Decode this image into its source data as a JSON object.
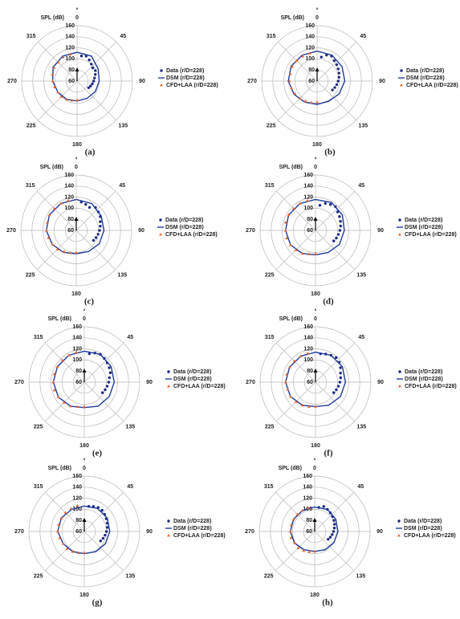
{
  "chart_data": [
    {
      "type": "polar",
      "label": "(a)",
      "raxis_label": "SPL (dB)",
      "angle_unit": "°",
      "rlim": [
        60,
        160
      ],
      "rticks": [
        60,
        80,
        100,
        120,
        140,
        160
      ],
      "angle_ticks": [
        0,
        45,
        90,
        135,
        180,
        225,
        270,
        315
      ],
      "grid": true,
      "series": [
        {
          "name": "Data (r/D=228)",
          "style": "circle",
          "color": "#1c2a80",
          "theta": [
            10,
            20,
            30,
            40,
            50,
            60,
            70,
            80,
            90,
            100,
            110,
            120
          ],
          "values": [
            106,
            108,
            104,
            100,
            97,
            98,
            95,
            92,
            90,
            88,
            86,
            84
          ]
        },
        {
          "name": "DSM (r/D=228)",
          "style": "line",
          "color": "#1f3b9c",
          "theta": [
            0,
            30,
            60,
            90,
            120,
            150,
            180,
            210,
            240,
            270,
            300,
            330,
            360
          ],
          "values": [
            112,
            112,
            104,
            100,
            98,
            96,
            96,
            98,
            100,
            104,
            110,
            112,
            112
          ]
        },
        {
          "name": "CFD+LAA (r/D=228)",
          "style": "triangle",
          "color": "#e8632a",
          "theta": [
            180,
            195,
            210,
            225,
            240,
            255,
            270,
            285,
            300,
            315,
            330,
            345
          ],
          "values": [
            94,
            96,
            98,
            100,
            100,
            102,
            104,
            106,
            108,
            108,
            110,
            110
          ]
        }
      ]
    },
    {
      "type": "polar",
      "label": "(b)",
      "raxis_label": "SPL (dB)",
      "angle_unit": "°",
      "rlim": [
        60,
        160
      ],
      "rticks": [
        60,
        80,
        100,
        120,
        140,
        160
      ],
      "angle_ticks": [
        0,
        45,
        90,
        135,
        180,
        225,
        270,
        315
      ],
      "grid": true,
      "series": [
        {
          "name": "Data (r/D=228)",
          "style": "circle",
          "color": "#1c2a80",
          "theta": [
            10,
            20,
            30,
            40,
            50,
            60,
            70,
            80,
            90,
            100,
            110,
            120
          ],
          "values": [
            104,
            110,
            112,
            108,
            106,
            104,
            102,
            100,
            98,
            96,
            94,
            92
          ]
        },
        {
          "name": "DSM (r/D=228)",
          "style": "line",
          "color": "#1f3b9c",
          "theta": [
            0,
            30,
            60,
            90,
            120,
            150,
            180,
            210,
            240,
            270,
            300,
            330,
            360
          ],
          "values": [
            114,
            114,
            112,
            110,
            106,
            102,
            102,
            104,
            108,
            112,
            114,
            114,
            114
          ]
        },
        {
          "name": "CFD+LAA (r/D=228)",
          "style": "triangle",
          "color": "#e8632a",
          "theta": [
            180,
            195,
            210,
            225,
            240,
            255,
            270,
            285,
            300,
            315,
            330,
            345
          ],
          "values": [
            98,
            100,
            102,
            104,
            106,
            108,
            110,
            110,
            112,
            112,
            112,
            112
          ]
        }
      ]
    },
    {
      "type": "polar",
      "label": "(c)",
      "raxis_label": "SPL (dB)",
      "angle_unit": "°",
      "rlim": [
        60,
        160
      ],
      "rticks": [
        60,
        80,
        100,
        120,
        140,
        160
      ],
      "angle_ticks": [
        0,
        45,
        90,
        135,
        180,
        225,
        270,
        315
      ],
      "grid": true,
      "series": [
        {
          "name": "Data (r/D=228)",
          "style": "circle",
          "color": "#1c2a80",
          "theta": [
            10,
            20,
            30,
            40,
            50,
            60,
            70,
            80,
            90,
            100,
            110,
            120
          ],
          "values": [
            112,
            110,
            108,
            114,
            112,
            110,
            106,
            104,
            102,
            100,
            98,
            96
          ]
        },
        {
          "name": "DSM (r/D=228)",
          "style": "line",
          "color": "#1f3b9c",
          "theta": [
            0,
            30,
            60,
            90,
            120,
            150,
            180,
            210,
            240,
            270,
            300,
            330,
            360
          ],
          "values": [
            116,
            116,
            112,
            110,
            108,
            104,
            102,
            106,
            110,
            114,
            116,
            116,
            116
          ]
        },
        {
          "name": "CFD+LAA (r/D=228)",
          "style": "triangle",
          "color": "#e8632a",
          "theta": [
            180,
            195,
            210,
            225,
            240,
            255,
            270,
            285,
            300,
            315,
            330,
            345
          ],
          "values": [
            100,
            102,
            104,
            108,
            110,
            112,
            114,
            114,
            116,
            116,
            116,
            116
          ]
        }
      ]
    },
    {
      "type": "polar",
      "label": "(d)",
      "raxis_label": "SPL (dB)",
      "angle_unit": "°",
      "rlim": [
        60,
        160
      ],
      "rticks": [
        60,
        80,
        100,
        120,
        140,
        160
      ],
      "angle_ticks": [
        0,
        45,
        90,
        135,
        180,
        225,
        270,
        315
      ],
      "grid": true,
      "series": [
        {
          "name": "Data (r/D=228)",
          "style": "circle",
          "color": "#1c2a80",
          "theta": [
            10,
            20,
            30,
            40,
            50,
            60,
            70,
            80,
            90,
            100,
            110,
            120
          ],
          "values": [
            106,
            112,
            114,
            116,
            112,
            110,
            108,
            106,
            104,
            102,
            100,
            98
          ]
        },
        {
          "name": "DSM (r/D=228)",
          "style": "line",
          "color": "#1f3b9c",
          "theta": [
            0,
            30,
            60,
            90,
            120,
            150,
            180,
            210,
            240,
            270,
            300,
            330,
            360
          ],
          "values": [
            116,
            118,
            116,
            112,
            110,
            106,
            104,
            108,
            112,
            114,
            116,
            116,
            116
          ]
        },
        {
          "name": "CFD+LAA (r/D=228)",
          "style": "triangle",
          "color": "#e8632a",
          "theta": [
            180,
            195,
            210,
            225,
            240,
            255,
            270,
            285,
            300,
            315,
            330,
            345
          ],
          "values": [
            102,
            104,
            108,
            110,
            112,
            114,
            114,
            116,
            116,
            116,
            116,
            116
          ]
        }
      ]
    },
    {
      "type": "polar",
      "label": "(e)",
      "raxis_label": "SPL (dB)",
      "angle_unit": "°",
      "rlim": [
        60,
        160
      ],
      "rticks": [
        60,
        80,
        100,
        120,
        140,
        160
      ],
      "angle_ticks": [
        0,
        45,
        90,
        135,
        180,
        225,
        270,
        315
      ],
      "grid": true,
      "series": [
        {
          "name": "Data (r/D=228)",
          "style": "circle",
          "color": "#1c2a80",
          "theta": [
            10,
            20,
            30,
            40,
            50,
            60,
            70,
            80,
            90,
            100,
            110,
            120
          ],
          "values": [
            112,
            116,
            118,
            116,
            114,
            112,
            110,
            106,
            104,
            102,
            100,
            98
          ]
        },
        {
          "name": "DSM (r/D=228)",
          "style": "line",
          "color": "#1f3b9c",
          "theta": [
            0,
            30,
            60,
            90,
            120,
            150,
            180,
            210,
            240,
            270,
            300,
            330,
            360
          ],
          "values": [
            116,
            118,
            116,
            114,
            112,
            110,
            106,
            110,
            114,
            116,
            116,
            116,
            116
          ]
        },
        {
          "name": "CFD+LAA (r/D=228)",
          "style": "triangle",
          "color": "#e8632a",
          "theta": [
            180,
            195,
            210,
            225,
            240,
            255,
            270,
            285,
            300,
            315,
            330,
            345
          ],
          "values": [
            104,
            106,
            110,
            112,
            114,
            116,
            116,
            116,
            116,
            116,
            116,
            116
          ]
        }
      ]
    },
    {
      "type": "polar",
      "label": "(f)",
      "raxis_label": "SPL (dB)",
      "angle_unit": "°",
      "rlim": [
        60,
        160
      ],
      "rticks": [
        60,
        80,
        100,
        120,
        140,
        160
      ],
      "angle_ticks": [
        0,
        45,
        90,
        135,
        180,
        225,
        270,
        315
      ],
      "grid": true,
      "series": [
        {
          "name": "Data (r/D=228)",
          "style": "circle",
          "color": "#1c2a80",
          "theta": [
            10,
            20,
            30,
            40,
            50,
            60,
            70,
            80,
            90,
            100,
            110,
            120
          ],
          "values": [
            112,
            114,
            116,
            118,
            116,
            112,
            108,
            106,
            104,
            102,
            100,
            98
          ]
        },
        {
          "name": "DSM (r/D=228)",
          "style": "line",
          "color": "#1f3b9c",
          "theta": [
            0,
            30,
            60,
            90,
            120,
            150,
            180,
            210,
            240,
            270,
            300,
            330,
            360
          ],
          "values": [
            114,
            116,
            116,
            114,
            112,
            108,
            104,
            108,
            112,
            114,
            114,
            114,
            114
          ]
        },
        {
          "name": "CFD+LAA (r/D=228)",
          "style": "triangle",
          "color": "#e8632a",
          "theta": [
            180,
            195,
            210,
            225,
            240,
            255,
            270,
            285,
            300,
            315,
            330,
            345
          ],
          "values": [
            104,
            106,
            108,
            110,
            112,
            112,
            114,
            114,
            114,
            114,
            114,
            114
          ]
        }
      ]
    },
    {
      "type": "polar",
      "label": "(g)",
      "raxis_label": "SPL (dB)",
      "angle_unit": "°",
      "rlim": [
        60,
        160
      ],
      "rticks": [
        60,
        80,
        100,
        120,
        140,
        160
      ],
      "angle_ticks": [
        0,
        45,
        90,
        135,
        180,
        225,
        270,
        315
      ],
      "grid": true,
      "series": [
        {
          "name": "Data (r/D=228)",
          "style": "circle",
          "color": "#1c2a80",
          "theta": [
            10,
            20,
            30,
            40,
            50,
            60,
            70,
            80,
            90,
            100,
            110,
            120
          ],
          "values": [
            106,
            108,
            110,
            110,
            108,
            106,
            104,
            102,
            100,
            98,
            96,
            94
          ]
        },
        {
          "name": "DSM (r/D=228)",
          "style": "line",
          "color": "#1f3b9c",
          "theta": [
            0,
            30,
            60,
            90,
            120,
            150,
            180,
            210,
            240,
            270,
            300,
            330,
            360
          ],
          "values": [
            106,
            108,
            108,
            106,
            104,
            102,
            100,
            102,
            104,
            108,
            108,
            106,
            106
          ]
        },
        {
          "name": "CFD+LAA (r/D=228)",
          "style": "triangle",
          "color": "#e8632a",
          "theta": [
            180,
            195,
            210,
            225,
            240,
            255,
            270,
            285,
            300,
            315,
            330,
            345
          ],
          "values": [
            98,
            100,
            102,
            104,
            104,
            106,
            108,
            108,
            108,
            108,
            108,
            108
          ]
        }
      ]
    },
    {
      "type": "polar",
      "label": "(h)",
      "raxis_label": "SPL (dB)",
      "angle_unit": "°",
      "rlim": [
        60,
        160
      ],
      "rticks": [
        60,
        80,
        100,
        120,
        140,
        160
      ],
      "angle_ticks": [
        0,
        45,
        90,
        135,
        180,
        225,
        270,
        315
      ],
      "grid": true,
      "series": [
        {
          "name": "Data (r/D=228)",
          "style": "circle",
          "color": "#1c2a80",
          "theta": [
            10,
            20,
            30,
            40,
            50,
            60,
            70,
            80,
            90,
            100,
            110,
            120
          ],
          "values": [
            104,
            108,
            106,
            104,
            102,
            100,
            98,
            96,
            94,
            92,
            90,
            88
          ]
        },
        {
          "name": "DSM (r/D=228)",
          "style": "line",
          "color": "#1f3b9c",
          "theta": [
            0,
            30,
            60,
            90,
            120,
            150,
            180,
            210,
            240,
            270,
            300,
            330,
            360
          ],
          "values": [
            104,
            106,
            104,
            102,
            100,
            98,
            96,
            98,
            102,
            104,
            104,
            104,
            104
          ]
        },
        {
          "name": "CFD+LAA (r/D=228)",
          "style": "triangle",
          "color": "#e8632a",
          "theta": [
            180,
            195,
            210,
            225,
            240,
            255,
            270,
            285,
            300,
            315,
            330,
            345
          ],
          "values": [
            96,
            98,
            100,
            102,
            102,
            104,
            104,
            104,
            104,
            104,
            104,
            104
          ]
        }
      ]
    }
  ]
}
